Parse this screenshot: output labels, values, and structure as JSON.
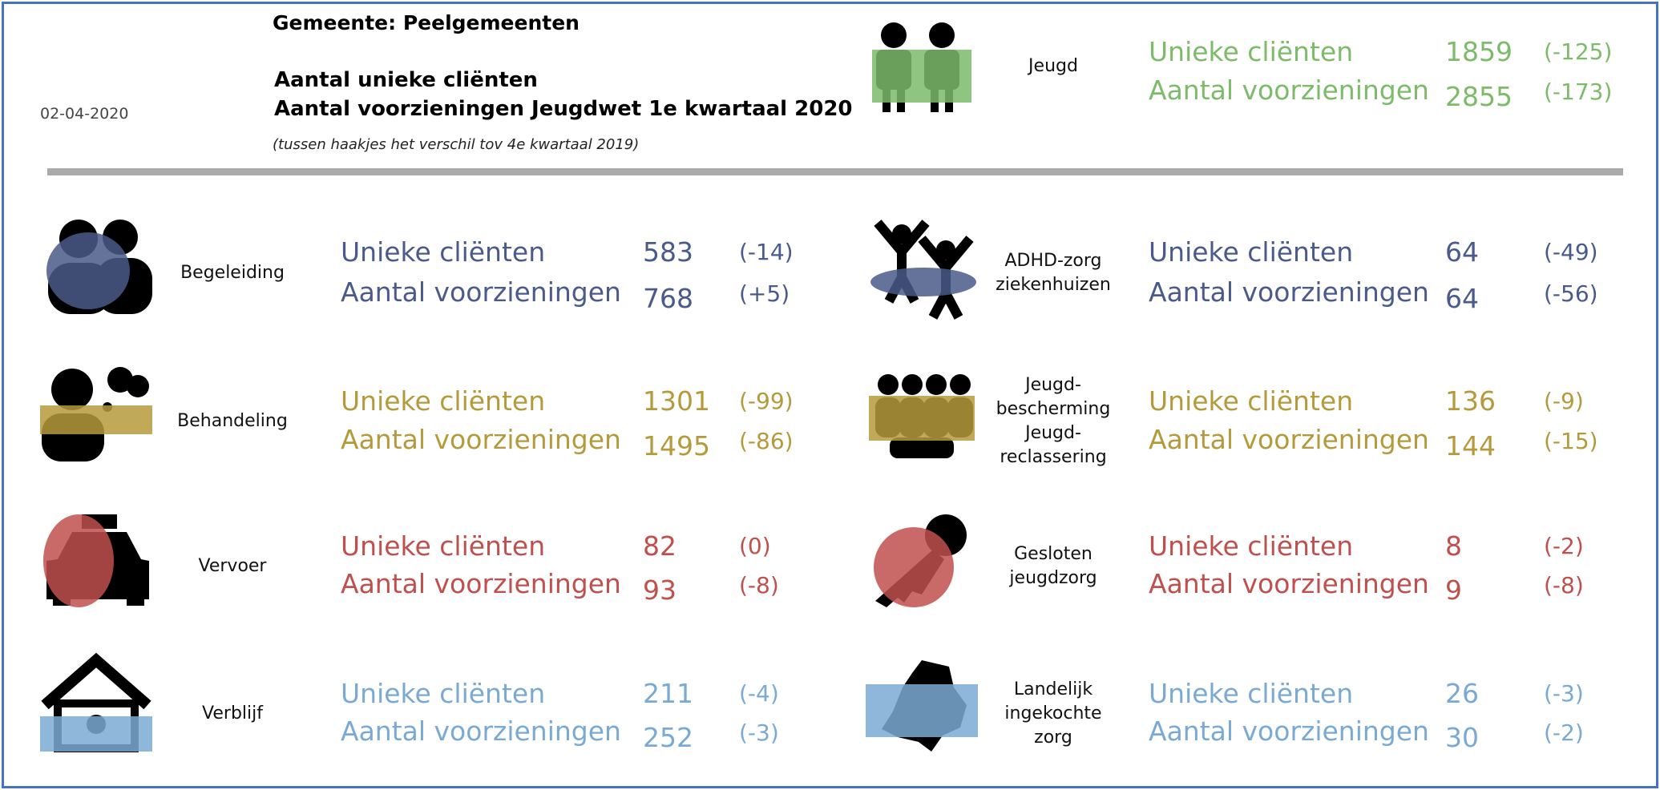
{
  "header": {
    "date": "02-04-2020",
    "municipality": "Gemeente: Peelgemeenten",
    "title_lines": [
      "Aantal unieke cliënten",
      "Aantal voorzieningen Jeugdwet 1e kwartaal 2020"
    ],
    "note": "(tussen haakjes het verschil tov 4e kwartaal 2019)"
  },
  "summary": {
    "label": [
      "Jeugd"
    ],
    "color": "#7dbb6b",
    "metrics": [
      {
        "label": "Unieke cliënten",
        "value": 1859,
        "change": "(-125)"
      },
      {
        "label": "Aantal voorzieningen",
        "value": 2855,
        "change": "(-173)"
      }
    ]
  },
  "items": [
    {
      "label": [
        "Begeleiding"
      ],
      "color": "#4a5a8a",
      "metrics": [
        {
          "label": "Unieke cliënten",
          "value": 583,
          "change": "(-14)"
        },
        {
          "label": "Aantal voorzieningen",
          "value": 768,
          "change": "(+5)"
        }
      ]
    },
    {
      "label": [
        "ADHD-zorg",
        "ziekenhuizen"
      ],
      "color": "#4a5a8a",
      "metrics": [
        {
          "label": "Unieke cliënten",
          "value": 64,
          "change": "(-49)"
        },
        {
          "label": "Aantal voorzieningen",
          "value": 64,
          "change": "(-56)"
        }
      ]
    },
    {
      "label": [
        "Behandeling"
      ],
      "color": "#b59a3c",
      "metrics": [
        {
          "label": "Unieke cliënten",
          "value": 1301,
          "change": "(-99)"
        },
        {
          "label": "Aantal voorzieningen",
          "value": 1495,
          "change": "(-86)"
        }
      ]
    },
    {
      "label": [
        "Jeugd-",
        "bescherming",
        "Jeugd-",
        "reclassering"
      ],
      "color": "#b59a3c",
      "metrics": [
        {
          "label": "Unieke cliënten",
          "value": 136,
          "change": "(-9)"
        },
        {
          "label": "Aantal voorzieningen",
          "value": 144,
          "change": "(-15)"
        }
      ]
    },
    {
      "label": [
        "Vervoer"
      ],
      "color": "#c0504d",
      "metrics": [
        {
          "label": "Unieke cliënten",
          "value": 82,
          "change": "(0)"
        },
        {
          "label": "Aantal voorzieningen",
          "value": 93,
          "change": "(-8)"
        }
      ]
    },
    {
      "label": [
        "Gesloten",
        "jeugdzorg"
      ],
      "color": "#c0504d",
      "metrics": [
        {
          "label": "Unieke cliënten",
          "value": 8,
          "change": "(-2)"
        },
        {
          "label": "Aantal voorzieningen",
          "value": 9,
          "change": "(-8)"
        }
      ]
    },
    {
      "label": [
        "Verblijf"
      ],
      "color": "#7aaad4",
      "metrics": [
        {
          "label": "Unieke cliënten",
          "value": 211,
          "change": "(-4)"
        },
        {
          "label": "Aantal voorzieningen",
          "value": 252,
          "change": "(-3)"
        }
      ]
    },
    {
      "label": [
        "Landelijk",
        "ingekochte",
        "zorg"
      ],
      "color": "#7aaad4",
      "metrics": [
        {
          "label": "Unieke cliënten",
          "value": 26,
          "change": "(-3)"
        },
        {
          "label": "Aantal voorzieningen",
          "value": 30,
          "change": "(-2)"
        }
      ]
    }
  ]
}
